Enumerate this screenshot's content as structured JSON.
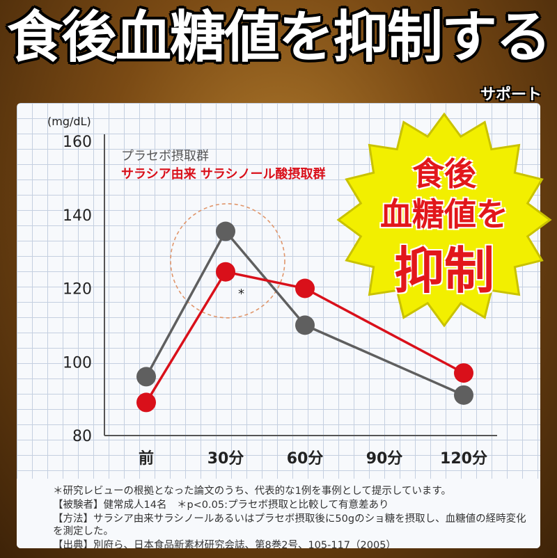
{
  "header": {
    "title": "食後血糖値を抑制する",
    "subtitle": "サポート"
  },
  "badge": {
    "line1": "食後",
    "line2": "血糖値を",
    "line3": "抑制",
    "colors": {
      "fill": "#f2ef00",
      "text": "#e2171b",
      "ring": "#c9c200"
    }
  },
  "chart_data": {
    "type": "line",
    "categories": [
      "前",
      "30分",
      "60分",
      "90分",
      "120分"
    ],
    "ylabel": "(mg/dL)",
    "ylim": [
      80,
      160
    ],
    "yticks": [
      "160",
      "140",
      "120",
      "100",
      "80"
    ],
    "grid": true,
    "legend_placement": "top-left",
    "series": [
      {
        "name": "プラセボ摂取群",
        "color": "#5f5f5f",
        "x": [
          "前",
          "30分",
          "60分",
          "120分"
        ],
        "values": [
          96,
          135.5,
          110,
          91
        ]
      },
      {
        "name": "サラシア由来 サラシノール酸摂取群",
        "color": "#d9101a",
        "x": [
          "前",
          "30分",
          "60分",
          "120分"
        ],
        "values": [
          89,
          124.5,
          120,
          97
        ]
      }
    ],
    "annotations": [
      {
        "text": "*",
        "near": "30分",
        "circle": "dashed orange"
      }
    ]
  },
  "notes": {
    "line1": "＊研究レビューの根拠となった論文のうち、代表的な1例を事例として提示しています。",
    "line2": "【被験者】健常成人14名　＊p<0.05:プラセボ摂取と比較して有意差あり",
    "line3": "【方法】サラシア由来サラシノールあるいはプラセボ摂取後に50gのショ糖を摂取し、血糖値の経時変化",
    "line4": "を測定した。",
    "line5": "【出典】別府ら、日本食品新素材研究会誌、第8巻2号、105-117（2005）"
  }
}
